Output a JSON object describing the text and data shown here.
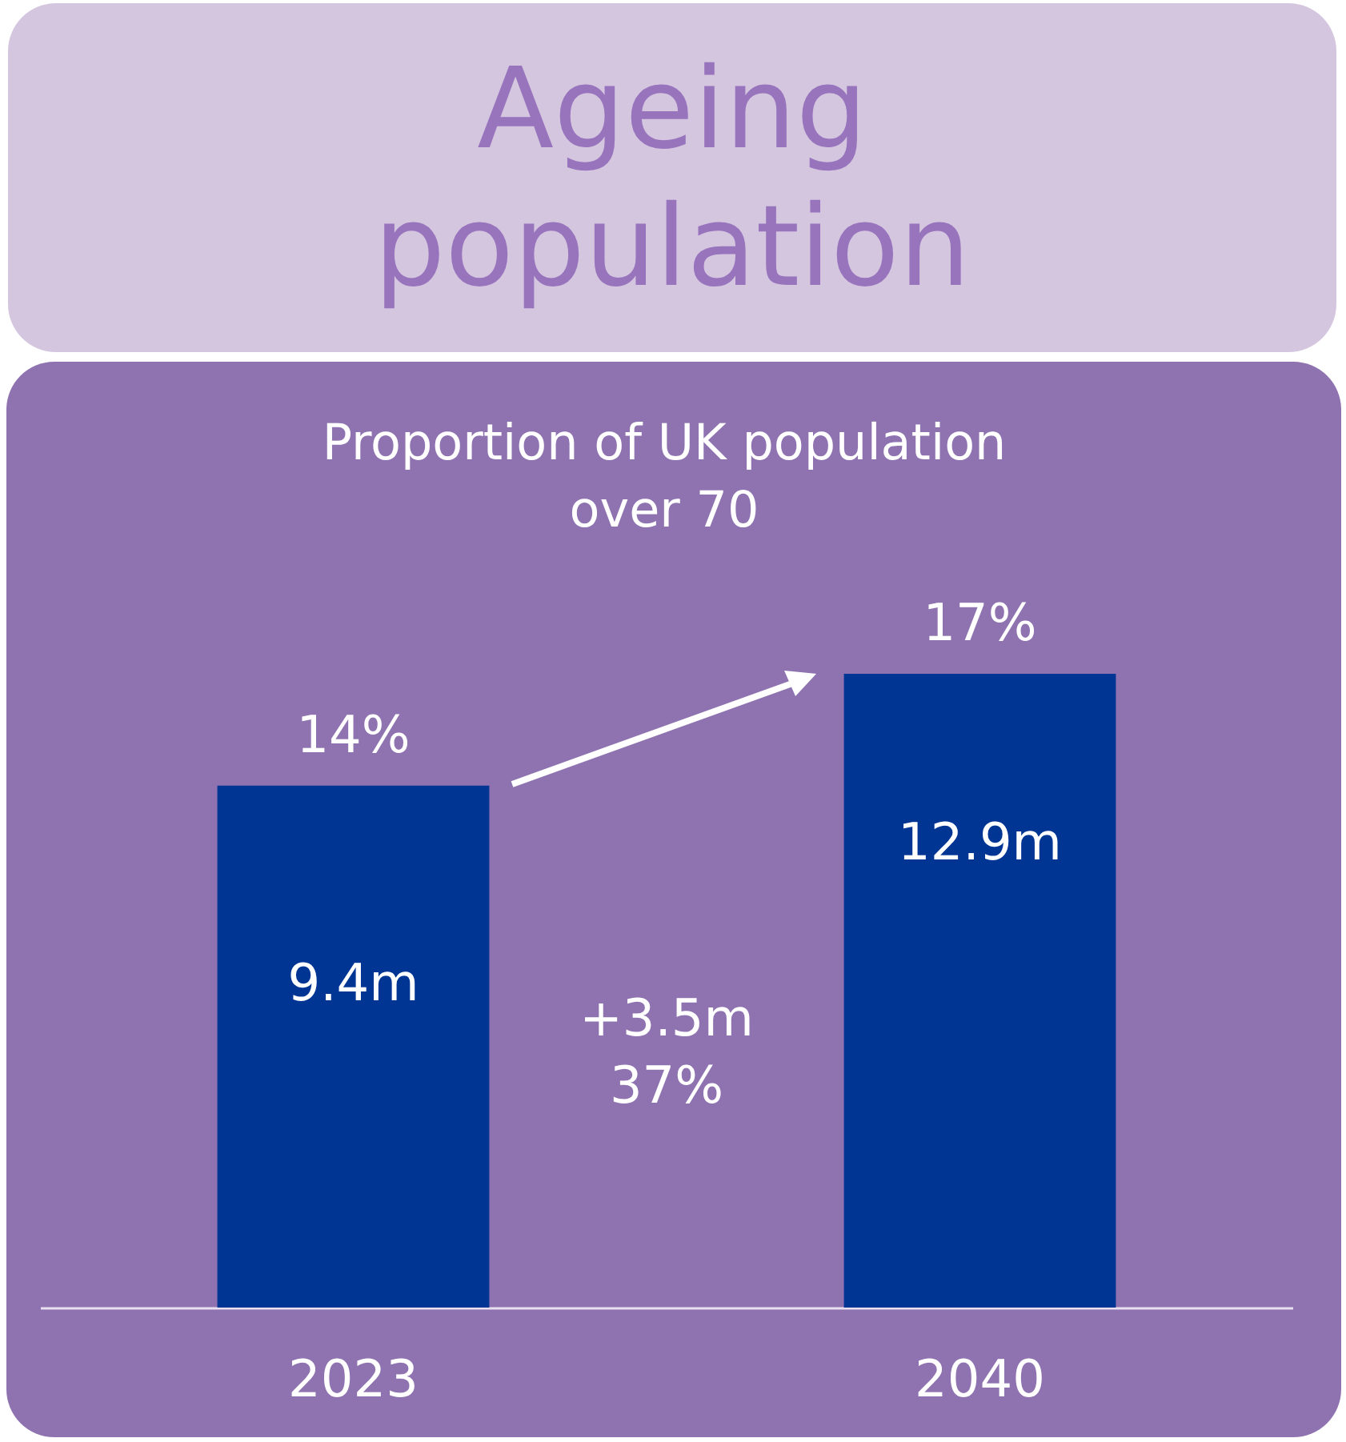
{
  "chart_data": {
    "type": "bar",
    "title": "Ageing population",
    "subtitle": "Proportion of UK population over 70",
    "categories": [
      "2023",
      "2040"
    ],
    "values": [
      14,
      17
    ],
    "value_labels": [
      "14%",
      "17%"
    ],
    "color": "#003594",
    "annotations": [
      "9.4m",
      "12.9m",
      "+3.5m\n37%"
    ]
  }
}
